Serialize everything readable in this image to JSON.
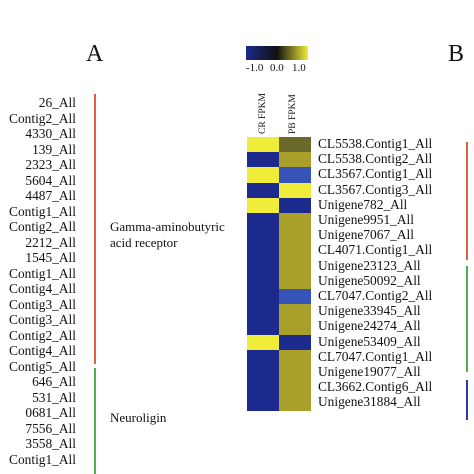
{
  "panel_labels": {
    "a": "A",
    "b": "B"
  },
  "left_gene_labels": [
    "26_All",
    "Contig2_All",
    "4330_All",
    "139_All",
    "2323_All",
    "5604_All",
    "4487_All",
    "Contig1_All",
    "Contig2_All",
    "2212_All",
    "1545_All",
    "Contig1_All",
    "Contig4_All",
    "Contig3_All",
    "Contig3_All",
    "Contig2_All",
    "Contig4_All",
    "Contig5_All",
    "646_All",
    "531_All",
    "0681_All",
    "7556_All",
    "3558_All",
    "Contig1_All"
  ],
  "categories": [
    {
      "name": "Gamma-aminobutyric\nacid receptor",
      "color": "#e2603f"
    },
    {
      "name": "Neuroligin",
      "color": "#4caf50"
    }
  ],
  "category_text": {
    "gaba_line1": "Gamma-aminobutyric",
    "gaba_line2": "acid receptor",
    "neuroligin": "Neuroligin"
  },
  "colors": {
    "low": "#1b2a8c",
    "mid": "#111111",
    "high": "#f0ec3a",
    "bar_red": "#e2603f",
    "bar_green": "#4caf50",
    "bar_blue": "#2b3aa8"
  },
  "chart_data": {
    "type": "heatmap",
    "columns": [
      "CR FPKM",
      "PB FPKM"
    ],
    "color_scale": {
      "min": -1.0,
      "max": 1.0,
      "tick_labels": [
        "-1.0",
        "0.0",
        "1.0"
      ],
      "colors": [
        "blue",
        "black",
        "yellow"
      ]
    },
    "rows": [
      "CL5538.Contig1_All",
      "CL5538.Contig2_All",
      "CL3567.Contig1_All",
      "CL3567.Contig3_All",
      "Unigene782_All",
      "Unigene9951_All",
      "Unigene7067_All",
      "CL4071.Contig1_All",
      "Unigene23123_All",
      "Unigene50092_All",
      "CL7047.Contig2_All",
      "Unigene33945_All",
      "Unigene24274_All",
      "Unigene53409_All",
      "CL7047.Contig1_All",
      "Unigene19077_All",
      "CL3662.Contig6_All",
      "Unigene31884_All"
    ],
    "values": [
      [
        1.0,
        0.3
      ],
      [
        -1.0,
        0.6
      ],
      [
        1.0,
        -0.8
      ],
      [
        -1.0,
        1.0
      ],
      [
        1.0,
        -1.0
      ],
      [
        -1.0,
        0.6
      ],
      [
        -1.0,
        0.6
      ],
      [
        -1.0,
        0.6
      ],
      [
        -1.0,
        0.6
      ],
      [
        -1.0,
        0.6
      ],
      [
        -1.0,
        -0.8
      ],
      [
        -1.0,
        0.6
      ],
      [
        -1.0,
        0.6
      ],
      [
        1.0,
        -1.0
      ],
      [
        -1.0,
        0.6
      ],
      [
        -1.0,
        0.6
      ],
      [
        -1.0,
        0.6
      ],
      [
        -1.0,
        0.6
      ]
    ]
  }
}
